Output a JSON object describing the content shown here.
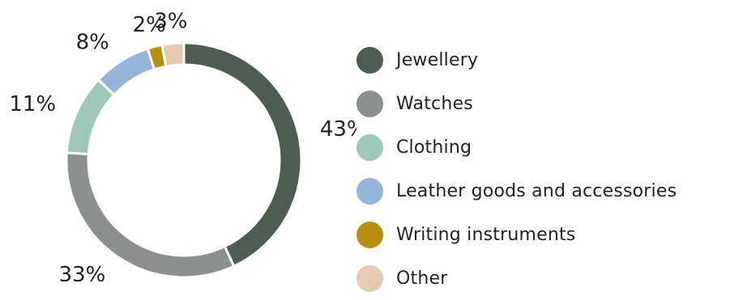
{
  "chart_data": {
    "type": "pie",
    "variant": "donut",
    "categories": [
      "Jewellery",
      "Watches",
      "Clothing",
      "Leather goods and accessories",
      "Writing instruments",
      "Other"
    ],
    "values": [
      43,
      33,
      11,
      8,
      2,
      3
    ],
    "value_labels": [
      "43%",
      "33%",
      "11%",
      "8%",
      "2%",
      "3%"
    ],
    "colors": [
      "#4d5d51",
      "#8b908f",
      "#9ec8b8",
      "#97b5d8",
      "#b98d0d",
      "#e6c9b2"
    ],
    "legend_position": "right",
    "title": ""
  }
}
